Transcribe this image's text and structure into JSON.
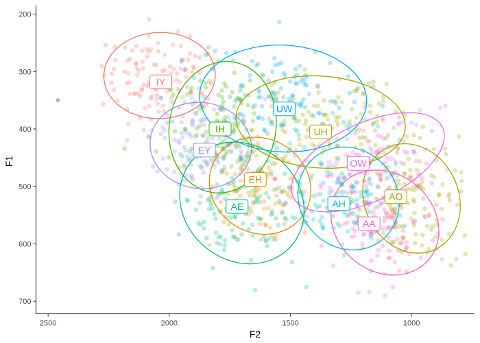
{
  "chart_data": {
    "type": "scatter",
    "title": "",
    "xlabel": "F2",
    "ylabel": "F1",
    "x_reversed": true,
    "y_reversed": true,
    "xlim": [
      2550,
      740
    ],
    "ylim": [
      185,
      722
    ],
    "x_ticks": [
      2500,
      2000,
      1500,
      1000
    ],
    "y_ticks": [
      200,
      300,
      400,
      500,
      600,
      700
    ],
    "grid": false,
    "legend": "none",
    "series": [
      {
        "name": "IY",
        "color": "#F8766D",
        "label_pos": {
          "F2": 2035,
          "F1": 318
        },
        "ellipse": {
          "cF2": 2040,
          "cF1": 307,
          "rF2": 230,
          "rF1": 75,
          "angle": -2
        }
      },
      {
        "name": "IH",
        "color": "#39B600",
        "label_pos": {
          "F2": 1790,
          "F1": 400
        },
        "ellipse": {
          "cF2": 1780,
          "cF1": 397,
          "rF2": 220,
          "rF1": 115,
          "angle": 10
        }
      },
      {
        "name": "EY",
        "color": "#9590FF",
        "label_pos": {
          "F2": 1855,
          "F1": 437
        },
        "ellipse": {
          "cF2": 1870,
          "cF1": 429,
          "rF2": 210,
          "rF1": 75,
          "angle": 8
        }
      },
      {
        "name": "EH",
        "color": "#D89000",
        "label_pos": {
          "F2": 1645,
          "F1": 488
        },
        "ellipse": {
          "cF2": 1625,
          "cF1": 499,
          "rF2": 215,
          "rF1": 82,
          "angle": 32
        }
      },
      {
        "name": "AE",
        "color": "#00BF7D",
        "label_pos": {
          "F2": 1720,
          "F1": 535
        },
        "ellipse": {
          "cF2": 1700,
          "cF1": 529,
          "rF2": 270,
          "rF1": 100,
          "angle": 40
        }
      },
      {
        "name": "UW",
        "color": "#00A7FF",
        "label_pos": {
          "F2": 1525,
          "F1": 365
        },
        "ellipse": {
          "cF2": 1530,
          "cF1": 347,
          "rF2": 345,
          "rF1": 93,
          "angle": 3
        }
      },
      {
        "name": "UH",
        "color": "#A3A500",
        "label_pos": {
          "F2": 1375,
          "F1": 405
        },
        "ellipse": {
          "cF2": 1375,
          "cF1": 388,
          "rF2": 350,
          "rF1": 80,
          "angle": 4
        }
      },
      {
        "name": "OW",
        "color": "#E76BF3",
        "label_pos": {
          "F2": 1220,
          "F1": 460
        },
        "ellipse": {
          "cF2": 1180,
          "cF1": 458,
          "rF2": 340,
          "rF1": 68,
          "angle": -25
        }
      },
      {
        "name": "AH",
        "color": "#00BFC4",
        "label_pos": {
          "F2": 1300,
          "F1": 530
        },
        "ellipse": {
          "cF2": 1260,
          "cF1": 521,
          "rF2": 220,
          "rF1": 85,
          "angle": 50
        }
      },
      {
        "name": "AO",
        "color": "#A3A500",
        "label_pos": {
          "F2": 1065,
          "F1": 518
        },
        "ellipse": {
          "cF2": 1000,
          "cF1": 521,
          "rF2": 232,
          "rF1": 82,
          "angle": 65
        }
      },
      {
        "name": "AA",
        "color": "#FF62BC",
        "label_pos": {
          "F2": 1175,
          "F1": 565
        },
        "ellipse": {
          "cF2": 1110,
          "cF1": 563,
          "rF2": 237,
          "rF1": 85,
          "angle": 40
        }
      }
    ],
    "points_per_series": 120,
    "point_opacity": 0.28,
    "outlier_points": [
      {
        "F2": 2460,
        "F1": 350
      }
    ]
  }
}
